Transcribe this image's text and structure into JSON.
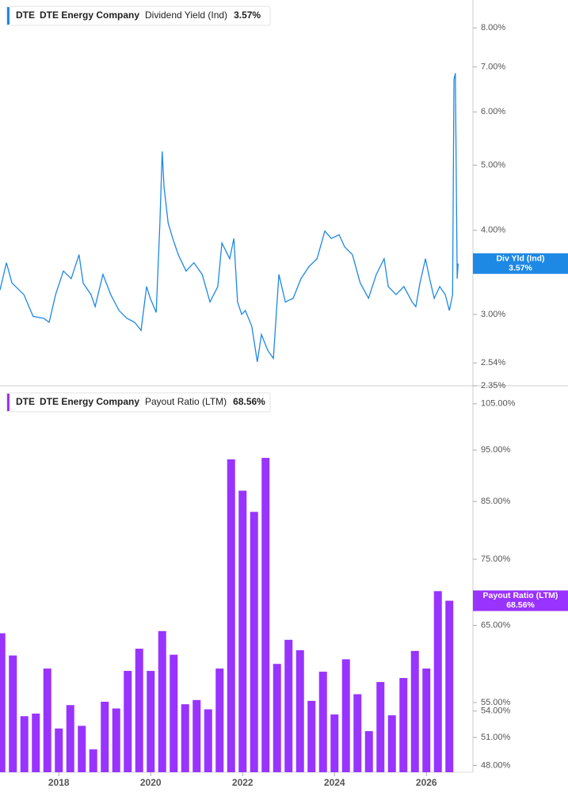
{
  "chart_data": [
    {
      "type": "line",
      "ticker": "DTE",
      "company": "DTE Energy Company",
      "tag": "Div Yld (Ind)",
      "log_scale": true,
      "x": [
        2016.72,
        2016.86,
        2016.98,
        2017.24,
        2017.44,
        2017.67,
        2017.79,
        2017.93,
        2018.1,
        2018.27,
        2018.44,
        2018.53,
        2018.7,
        2018.79,
        2018.96,
        2019.13,
        2019.31,
        2019.48,
        2019.65,
        2019.79,
        2019.91,
        2019.99,
        2020.12,
        2020.2,
        2020.25,
        2020.29,
        2020.38,
        2020.48,
        2020.6,
        2020.77,
        2020.94,
        2021.12,
        2021.29,
        2021.46,
        2021.55,
        2021.72,
        2021.81,
        2021.89,
        2021.98,
        2022.06,
        2022.2,
        2022.32,
        2022.41,
        2022.55,
        2022.67,
        2022.79,
        2022.93,
        2023.1,
        2023.27,
        2023.44,
        2023.62,
        2023.79,
        2023.93,
        2024.1,
        2024.22,
        2024.39,
        2024.56,
        2024.74,
        2024.91,
        2025.08,
        2025.17,
        2025.34,
        2025.51,
        2025.69,
        2025.77,
        2025.86,
        2025.98,
        2026.07,
        2026.17,
        2026.29,
        2026.41,
        2026.5,
        2026.57,
        2026.6,
        2026.63,
        2026.67,
        2026.69
      ],
      "series": [
        {
          "name": "Dividend Yield (Ind)",
          "color": "#1e88e5",
          "values": [
            3.26,
            3.58,
            3.34,
            3.21,
            2.98,
            2.96,
            2.92,
            3.21,
            3.48,
            3.39,
            3.68,
            3.34,
            3.21,
            3.08,
            3.44,
            3.21,
            3.04,
            2.96,
            2.92,
            2.84,
            3.3,
            3.17,
            3.02,
            4.1,
            5.24,
            4.64,
            4.1,
            3.89,
            3.68,
            3.48,
            3.58,
            3.44,
            3.13,
            3.3,
            3.83,
            3.63,
            3.89,
            3.13,
            3.0,
            3.04,
            2.88,
            2.55,
            2.8,
            2.65,
            2.58,
            3.44,
            3.13,
            3.17,
            3.39,
            3.53,
            3.63,
            3.99,
            3.89,
            3.94,
            3.78,
            3.68,
            3.34,
            3.17,
            3.44,
            3.63,
            3.3,
            3.21,
            3.3,
            3.13,
            3.08,
            3.34,
            3.63,
            3.39,
            3.17,
            3.3,
            3.21,
            3.04,
            3.21,
            6.7,
            6.85,
            3.39,
            3.57
          ],
          "value_labels": [
            null,
            null,
            null,
            null,
            null,
            null,
            null,
            null,
            null,
            null,
            null,
            null,
            null,
            null,
            null,
            null,
            null,
            null,
            null,
            null,
            null,
            null,
            null,
            null,
            null,
            null,
            null,
            null,
            null,
            null,
            null,
            null,
            null,
            null,
            null,
            null,
            null,
            null,
            null,
            null,
            null,
            null,
            null,
            null,
            null,
            null,
            null,
            null,
            null,
            null,
            null,
            null,
            null,
            null,
            null,
            null,
            null,
            null,
            null,
            null,
            null,
            null,
            null,
            null,
            null,
            null,
            null,
            null,
            null,
            null,
            null,
            null,
            null,
            null,
            null,
            null,
            "3.57%"
          ]
        }
      ],
      "xlim": [
        2016.72,
        2027.013
      ],
      "ylim": [
        2.35,
        8.8
      ],
      "yticks": [
        {
          "value": 2.35,
          "label": "2.35%"
        },
        {
          "value": 2.54,
          "label": "2.54%"
        },
        {
          "value": 3,
          "label": "3.00%"
        },
        {
          "value": 4,
          "label": "4.00%"
        },
        {
          "value": 5,
          "label": "5.00%"
        },
        {
          "value": 6,
          "label": "6.00%"
        },
        {
          "value": 7,
          "label": "7.00%"
        },
        {
          "value": 8,
          "label": "8.00%"
        }
      ]
    },
    {
      "type": "bar",
      "ticker": "DTE",
      "company": "DTE Energy Company",
      "log_scale": true,
      "x": [
        2016.75,
        2017,
        2017.25,
        2017.5,
        2017.75,
        2018,
        2018.25,
        2018.5,
        2018.75,
        2019,
        2019.25,
        2019.5,
        2019.75,
        2020,
        2020.25,
        2020.5,
        2020.75,
        2021,
        2021.25,
        2021.5,
        2021.75,
        2022,
        2022.25,
        2022.5,
        2022.75,
        2023,
        2023.25,
        2023.5,
        2023.75,
        2024,
        2024.25,
        2024.5,
        2024.75,
        2025,
        2025.25,
        2025.5,
        2025.75,
        2026,
        2026.25,
        2026.5
      ],
      "series": [
        {
          "name": "Payout Ratio (LTM)",
          "color": "#9933ff",
          "values": [
            63.9,
            60.9,
            53.4,
            53.7,
            59.2,
            52.0,
            54.7,
            52.3,
            49.7,
            55.1,
            54.3,
            58.9,
            61.8,
            58.9,
            64.2,
            61.0,
            54.8,
            55.3,
            54.2,
            59.2,
            93.1,
            87.0,
            83.1,
            93.4,
            59.8,
            63.0,
            61.6,
            55.2,
            58.8,
            53.6,
            60.4,
            56.0,
            51.7,
            57.5,
            53.5,
            58.0,
            61.5,
            59.2,
            70.0,
            68.56
          ],
          "value_labels": [
            null,
            null,
            null,
            null,
            null,
            null,
            null,
            null,
            null,
            null,
            null,
            null,
            null,
            null,
            null,
            null,
            null,
            null,
            null,
            null,
            null,
            null,
            null,
            null,
            null,
            null,
            null,
            null,
            null,
            null,
            null,
            null,
            null,
            null,
            null,
            null,
            null,
            null,
            null,
            "68.56%"
          ]
        }
      ],
      "xlim": [
        2016.72,
        2027.013
      ],
      "ylim": [
        47.3,
        109
      ],
      "xticks": [
        2018,
        2020,
        2022,
        2024,
        2026
      ],
      "yticks": [
        {
          "value": 48,
          "label": "48.00%"
        },
        {
          "value": 51,
          "label": "51.00%"
        },
        {
          "value": 54,
          "label": "54.00%"
        },
        {
          "value": 55,
          "label": "55.00%"
        },
        {
          "value": 65,
          "label": "65.00%"
        },
        {
          "value": 75,
          "label": "75.00%"
        },
        {
          "value": 85,
          "label": "85.00%"
        },
        {
          "value": 95,
          "label": "95.00%"
        },
        {
          "value": 105,
          "label": "105.00%"
        }
      ]
    }
  ]
}
